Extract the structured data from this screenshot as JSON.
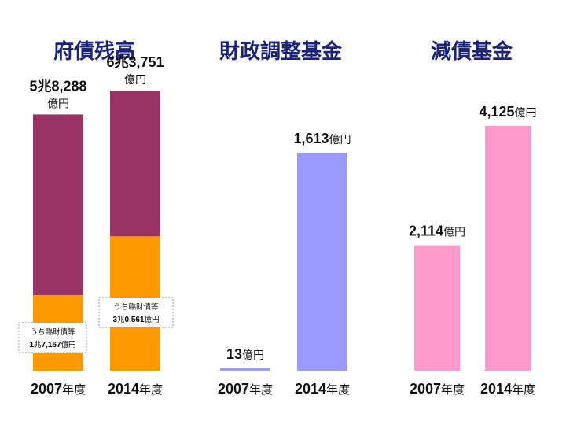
{
  "colors": {
    "title": "#1a237e",
    "debt_total": "#993366",
    "debt_special": "#ff9900",
    "fiscal_fund": "#9999ff",
    "sinking_fund": "#ff99cc"
  },
  "chart_data": [
    {
      "type": "bar",
      "title": "府債残高",
      "categories": [
        "2007年度",
        "2014年度"
      ],
      "series": [
        {
          "values": [
            17167,
            30561
          ],
          "color": "#ff9900"
        },
        {
          "values": [
            41121,
            33190
          ],
          "color": "#993366"
        }
      ],
      "totals": [
        58288,
        63751
      ],
      "value_labels": [
        {
          "num": "5兆8,288",
          "unit": "億円"
        },
        {
          "num": "6兆3,751",
          "unit": "億円"
        }
      ],
      "notes": [
        {
          "line1": "うち臨財債等",
          "line2_num1": "1",
          "line2_unit1": "兆",
          "line2_num2": "7,167",
          "line2_unit2": "億円"
        },
        {
          "line1": "うち臨財債等",
          "line2_num1": "3",
          "line2_unit1": "兆",
          "line2_num2": "0,561",
          "line2_unit2": "億円"
        }
      ],
      "ylim": [
        0,
        70000
      ]
    },
    {
      "type": "bar",
      "title": "財政調整基金",
      "categories": [
        "2007年度",
        "2014年度"
      ],
      "values": [
        13,
        1613
      ],
      "value_labels": [
        {
          "num": "13",
          "unit": "億円"
        },
        {
          "num": "1,613",
          "unit": "億円"
        }
      ],
      "color": "#9999ff",
      "ylim": [
        0,
        1900
      ]
    },
    {
      "type": "bar",
      "title": "減債基金",
      "categories": [
        "2007年度",
        "2014年度"
      ],
      "values": [
        2114,
        4125
      ],
      "value_labels": [
        {
          "num": "2,114",
          "unit": "億円"
        },
        {
          "num": "4,125",
          "unit": "億円"
        }
      ],
      "color": "#ff99cc",
      "ylim": [
        0,
        4600
      ]
    }
  ]
}
